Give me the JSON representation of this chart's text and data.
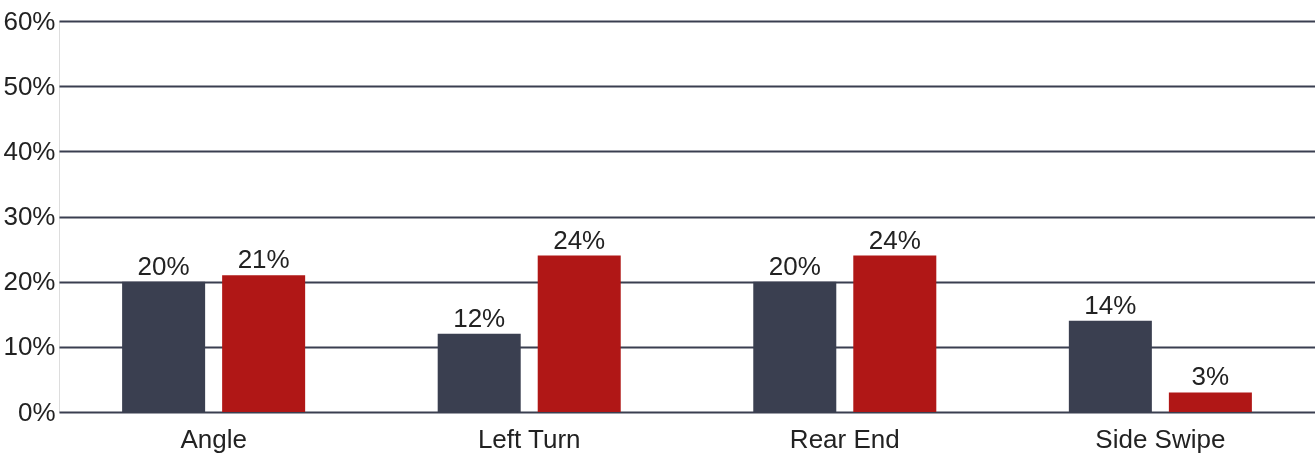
{
  "chart_data": {
    "type": "bar",
    "categories": [
      "Angle",
      "Left Turn",
      "Rear End",
      "Side Swipe"
    ],
    "series": [
      {
        "color": "#3a3f50",
        "values": [
          20,
          12,
          20,
          14
        ],
        "value_labels": [
          "20%",
          "12%",
          "20%",
          "14%"
        ]
      },
      {
        "color": "#b01716",
        "values": [
          21,
          24,
          24,
          3
        ],
        "value_labels": [
          "21%",
          "24%",
          "24%",
          "3%"
        ]
      }
    ],
    "ylim": [
      0,
      60
    ],
    "yticks": [
      {
        "value": 0,
        "label": "0%"
      },
      {
        "value": 10,
        "label": "10%"
      },
      {
        "value": 20,
        "label": "20%"
      },
      {
        "value": 30,
        "label": "30%"
      },
      {
        "value": 40,
        "label": "40%"
      },
      {
        "value": 50,
        "label": "50%"
      },
      {
        "value": 60,
        "label": "60%"
      }
    ],
    "grid": "y",
    "legend": false
  }
}
